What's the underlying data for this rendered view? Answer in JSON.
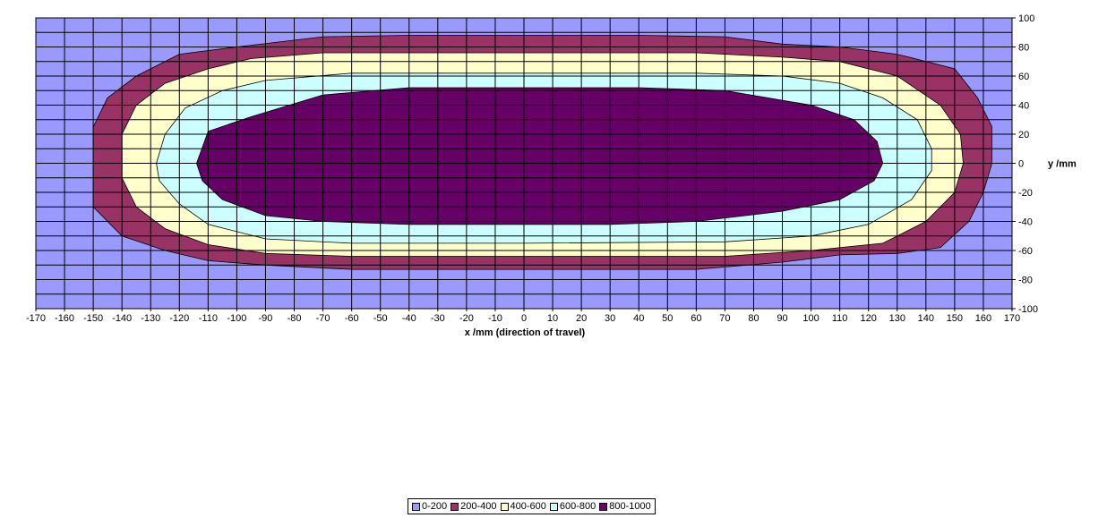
{
  "chart_data": {
    "type": "contour",
    "xlabel": "x /mm (direction of travel)",
    "ylabel": "y /mm",
    "xlim": [
      -170,
      170
    ],
    "ylim": [
      -100,
      100
    ],
    "x_ticks": [
      -170,
      -160,
      -150,
      -140,
      -130,
      -120,
      -110,
      -100,
      -90,
      -80,
      -70,
      -60,
      -50,
      -40,
      -30,
      -20,
      -10,
      0,
      10,
      20,
      30,
      40,
      50,
      60,
      70,
      80,
      90,
      100,
      110,
      120,
      130,
      140,
      150,
      160,
      170
    ],
    "y_ticks": [
      100,
      80,
      60,
      40,
      20,
      0,
      -20,
      -40,
      -60,
      -80,
      -100
    ],
    "grid_x_step": 10,
    "grid_y_step": 10,
    "grid": true,
    "legend_position": "bottom",
    "levels": [
      {
        "label": "0-200",
        "color": "#9999ff"
      },
      {
        "label": "200-400",
        "color": "#993366"
      },
      {
        "label": "400-600",
        "color": "#ffffcc"
      },
      {
        "label": "600-800",
        "color": "#ccffff"
      },
      {
        "label": "800-1000",
        "color": "#660066"
      }
    ],
    "contours": [
      {
        "level": "200-400",
        "boundary": [
          [
            -150,
            0
          ],
          [
            -150,
            25
          ],
          [
            -145,
            45
          ],
          [
            -135,
            60
          ],
          [
            -120,
            75
          ],
          [
            -100,
            80
          ],
          [
            -70,
            87
          ],
          [
            -40,
            88
          ],
          [
            0,
            88
          ],
          [
            40,
            88
          ],
          [
            70,
            87
          ],
          [
            90,
            82
          ],
          [
            110,
            80
          ],
          [
            130,
            75
          ],
          [
            150,
            65
          ],
          [
            158,
            45
          ],
          [
            163,
            25
          ],
          [
            163,
            0
          ],
          [
            160,
            -20
          ],
          [
            155,
            -40
          ],
          [
            145,
            -58
          ],
          [
            130,
            -62
          ],
          [
            110,
            -63
          ],
          [
            90,
            -68
          ],
          [
            60,
            -73
          ],
          [
            0,
            -73
          ],
          [
            -60,
            -73
          ],
          [
            -90,
            -70
          ],
          [
            -110,
            -67
          ],
          [
            -125,
            -60
          ],
          [
            -140,
            -50
          ],
          [
            -150,
            -30
          ],
          [
            -150,
            0
          ]
        ]
      },
      {
        "level": "400-600",
        "boundary": [
          [
            -140,
            0
          ],
          [
            -140,
            20
          ],
          [
            -135,
            40
          ],
          [
            -125,
            55
          ],
          [
            -110,
            65
          ],
          [
            -95,
            72
          ],
          [
            -70,
            76
          ],
          [
            0,
            76
          ],
          [
            60,
            76
          ],
          [
            90,
            73
          ],
          [
            110,
            70
          ],
          [
            130,
            60
          ],
          [
            145,
            40
          ],
          [
            152,
            20
          ],
          [
            153,
            0
          ],
          [
            150,
            -20
          ],
          [
            140,
            -40
          ],
          [
            125,
            -55
          ],
          [
            100,
            -60
          ],
          [
            70,
            -64
          ],
          [
            0,
            -64
          ],
          [
            -60,
            -64
          ],
          [
            -90,
            -62
          ],
          [
            -110,
            -56
          ],
          [
            -125,
            -45
          ],
          [
            -135,
            -30
          ],
          [
            -140,
            -10
          ],
          [
            -140,
            0
          ]
        ]
      },
      {
        "level": "600-800",
        "boundary": [
          [
            -128,
            0
          ],
          [
            -125,
            20
          ],
          [
            -118,
            38
          ],
          [
            -105,
            50
          ],
          [
            -90,
            57
          ],
          [
            -60,
            62
          ],
          [
            0,
            62
          ],
          [
            60,
            62
          ],
          [
            90,
            60
          ],
          [
            110,
            55
          ],
          [
            125,
            45
          ],
          [
            137,
            30
          ],
          [
            142,
            10
          ],
          [
            142,
            -5
          ],
          [
            135,
            -25
          ],
          [
            120,
            -42
          ],
          [
            100,
            -50
          ],
          [
            70,
            -54
          ],
          [
            0,
            -55
          ],
          [
            -60,
            -55
          ],
          [
            -90,
            -52
          ],
          [
            -110,
            -42
          ],
          [
            -120,
            -28
          ],
          [
            -127,
            -12
          ],
          [
            -128,
            0
          ]
        ]
      },
      {
        "level": "800-1000",
        "boundary": [
          [
            -114,
            0
          ],
          [
            -110,
            22
          ],
          [
            -95,
            32
          ],
          [
            -70,
            47
          ],
          [
            -40,
            52
          ],
          [
            0,
            52
          ],
          [
            40,
            52
          ],
          [
            70,
            50
          ],
          [
            100,
            40
          ],
          [
            115,
            30
          ],
          [
            123,
            15
          ],
          [
            125,
            0
          ],
          [
            122,
            -12
          ],
          [
            110,
            -25
          ],
          [
            90,
            -33
          ],
          [
            60,
            -40
          ],
          [
            30,
            -42
          ],
          [
            0,
            -42
          ],
          [
            -40,
            -42
          ],
          [
            -70,
            -40
          ],
          [
            -90,
            -36
          ],
          [
            -105,
            -25
          ],
          [
            -112,
            -12
          ],
          [
            -114,
            0
          ]
        ]
      }
    ]
  }
}
